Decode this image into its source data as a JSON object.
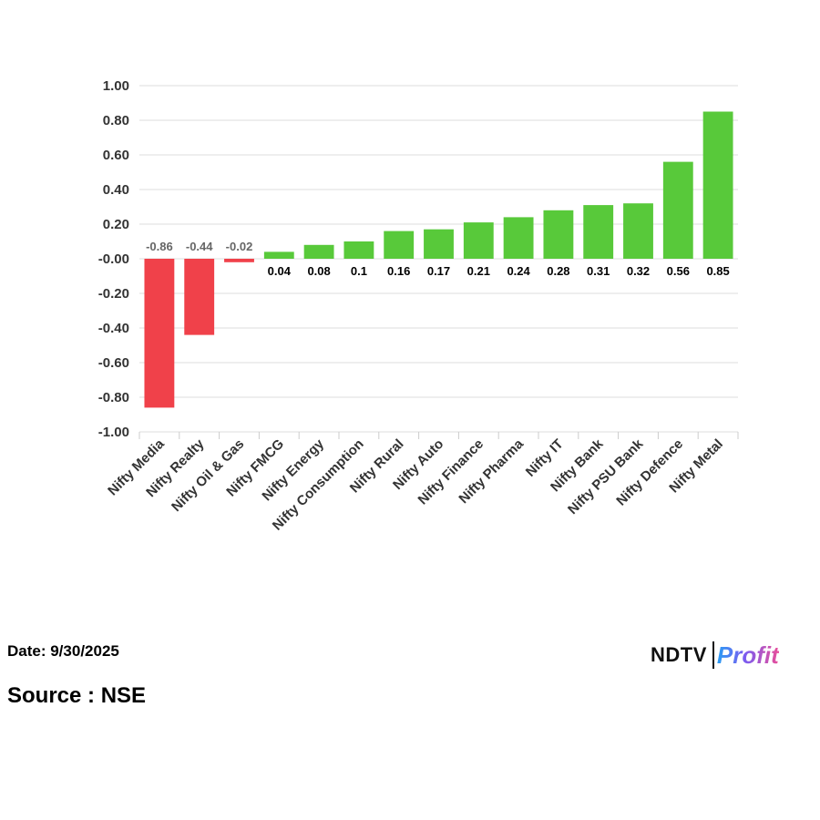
{
  "chart_data": {
    "type": "bar",
    "categories": [
      "Nifty Media",
      "Nifty Realty",
      "Nifty Oil & Gas",
      "Nifty FMCG",
      "Nifty Energy",
      "Nifty Consumption",
      "Nifty Rural",
      "Nifty Auto",
      "Nifty Finance",
      "Nifty Pharma",
      "Nifty IT",
      "Nifty Bank",
      "Nifty PSU Bank",
      "Nifty Defence",
      "Nifty Metal"
    ],
    "values": [
      -0.86,
      -0.44,
      -0.02,
      0.04,
      0.08,
      0.1,
      0.16,
      0.17,
      0.21,
      0.24,
      0.28,
      0.31,
      0.32,
      0.56,
      0.85
    ],
    "data_labels": [
      "-0.86",
      "-0.44",
      "-0.02",
      "0.04",
      "0.08",
      "0.1",
      "0.16",
      "0.17",
      "0.21",
      "0.24",
      "0.28",
      "0.31",
      "0.32",
      "0.56",
      "0.85"
    ],
    "yticks": [
      "1.00",
      "0.80",
      "0.60",
      "0.40",
      "0.20",
      "-0.00",
      "-0.20",
      "-0.40",
      "-0.60",
      "-0.80",
      "-1.00"
    ],
    "ylim": [
      -1,
      1
    ],
    "ystep": 0.2,
    "grid": true,
    "legend": "none",
    "title": "",
    "xlabel": "",
    "ylabel": "",
    "colors": {
      "positive": "#58c93a",
      "negative": "#f0414a",
      "grid": "#dddddd"
    }
  },
  "footer": {
    "date": "Date: 9/30/2025",
    "source": "Source : NSE"
  },
  "logo": {
    "brand": "NDTV",
    "product": "Profit"
  }
}
